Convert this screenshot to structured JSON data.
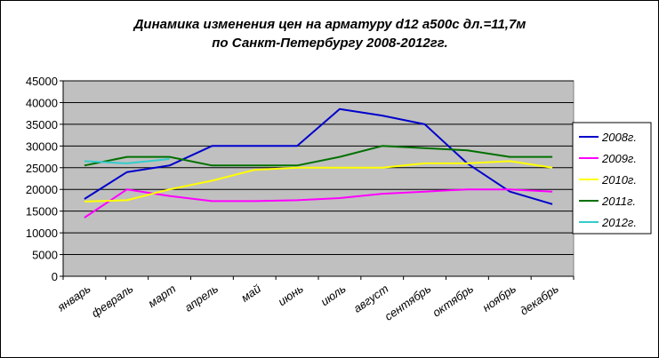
{
  "chart_data": {
    "type": "line",
    "title": [
      "Динамика изменения цен на арматуру d12 а500с дл.=11,7м",
      "по Санкт-Петербургу 2008-2012гг."
    ],
    "xlabel": "",
    "ylabel": "",
    "ylim": [
      0,
      45000
    ],
    "yticks": [
      0,
      5000,
      10000,
      15000,
      20000,
      25000,
      30000,
      35000,
      40000,
      45000
    ],
    "grid": true,
    "legend": "right",
    "categories": [
      "январь",
      "февраль",
      "март",
      "апрель",
      "май",
      "июнь",
      "июль",
      "август",
      "сентябрь",
      "октябрь",
      "ноябрь",
      "декабрь"
    ],
    "series": [
      {
        "name": "2008г.",
        "color": "#0000cc",
        "values": [
          17800,
          24000,
          25500,
          30000,
          30000,
          30000,
          38500,
          37000,
          35000,
          26000,
          19500,
          16600
        ]
      },
      {
        "name": "2009г.",
        "color": "#ff00ff",
        "values": [
          13500,
          20000,
          18500,
          17300,
          17300,
          17500,
          18000,
          19000,
          19500,
          20000,
          20000,
          19500
        ]
      },
      {
        "name": "2010г.",
        "color": "#ffff00",
        "values": [
          17200,
          17500,
          20000,
          22000,
          24500,
          25000,
          25000,
          25000,
          26000,
          26000,
          26500,
          25000
        ]
      },
      {
        "name": "2011г.",
        "color": "#007000",
        "values": [
          25500,
          27500,
          27500,
          25500,
          25500,
          25500,
          27500,
          30000,
          29500,
          29000,
          27500,
          27500
        ]
      },
      {
        "name": "2012г.",
        "color": "#33cccc",
        "values": [
          26500,
          26000,
          27000,
          null,
          null,
          null,
          null,
          null,
          null,
          null,
          null,
          null
        ]
      }
    ]
  }
}
